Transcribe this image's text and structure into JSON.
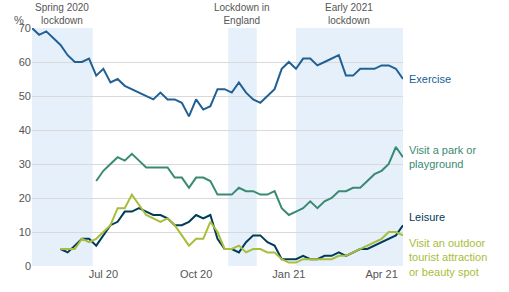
{
  "chart_data": {
    "type": "line",
    "y_label": "%",
    "categories": [
      null,
      null,
      null,
      null,
      null,
      null,
      null,
      null,
      null,
      null,
      "Jul 20",
      null,
      null,
      null,
      null,
      null,
      null,
      null,
      null,
      null,
      null,
      null,
      null,
      "Oct 20",
      null,
      null,
      null,
      null,
      null,
      null,
      null,
      null,
      null,
      null,
      null,
      null,
      "Jan 21",
      null,
      null,
      null,
      null,
      null,
      null,
      null,
      null,
      null,
      null,
      null,
      null,
      "Apr 21",
      null,
      null,
      null
    ],
    "series": [
      {
        "name": "Exercise",
        "color": "#206095",
        "values": [
          70,
          68,
          69,
          67,
          65,
          62,
          60,
          60,
          61,
          56,
          58,
          54,
          55,
          53,
          52,
          51,
          50,
          49,
          51,
          49,
          49,
          48,
          44,
          49,
          46,
          47,
          52,
          52,
          51,
          54,
          51,
          49,
          48,
          50,
          52,
          58,
          60,
          58,
          61,
          61,
          59,
          60,
          61,
          62,
          56,
          56,
          58,
          58,
          58,
          59,
          59,
          58,
          55
        ]
      },
      {
        "name": "Visit a park or playground",
        "color": "#3a8a73",
        "values": [
          null,
          null,
          null,
          null,
          null,
          null,
          null,
          null,
          null,
          25,
          28,
          30,
          32,
          31,
          33,
          31,
          29,
          29,
          29,
          29,
          26,
          26,
          23,
          26,
          26,
          25,
          21,
          21,
          21,
          23,
          22,
          22,
          21,
          21,
          22,
          17,
          15,
          16,
          17,
          19,
          17,
          19,
          20,
          22,
          22,
          23,
          23,
          25,
          27,
          28,
          30,
          35,
          32
        ]
      },
      {
        "name": "Leisure",
        "color": "#003c57",
        "values": [
          null,
          null,
          null,
          null,
          5,
          4,
          6,
          8,
          8,
          6,
          9,
          12,
          13,
          16,
          16,
          17,
          16,
          15,
          15,
          14,
          12,
          12,
          13,
          15,
          14,
          15,
          8,
          5,
          5,
          4,
          7,
          9,
          9,
          7,
          6,
          2,
          2,
          2,
          3,
          2,
          2,
          3,
          3,
          4,
          3,
          4,
          5,
          5,
          6,
          7,
          8,
          9,
          12
        ]
      },
      {
        "name": "Visit an outdoor tourist attraction or beauty spot",
        "color": "#a8bd3a",
        "values": [
          null,
          null,
          null,
          null,
          5,
          5,
          5,
          8,
          7,
          8,
          10,
          12,
          17,
          17,
          21,
          18,
          15,
          14,
          13,
          14,
          12,
          9,
          6,
          8,
          8,
          13,
          10,
          5,
          5,
          6,
          4,
          5,
          5,
          4,
          4,
          2,
          1,
          1,
          2,
          2,
          2,
          2,
          2,
          3,
          3,
          4,
          5,
          6,
          7,
          8,
          10,
          10,
          9
        ]
      }
    ],
    "periods": [
      {
        "label": "Spring 2020 lockdown",
        "start": 0,
        "end": 8.5
      },
      {
        "label": "Lockdown in England",
        "start": 27.5,
        "end": 31.5
      },
      {
        "label": "Early 2021 lockdown",
        "start": 37,
        "end": 52
      }
    ],
    "ylim": [
      0,
      70
    ],
    "yticks": [
      0,
      10,
      20,
      30,
      40,
      50,
      60,
      70
    ],
    "grid": true
  }
}
